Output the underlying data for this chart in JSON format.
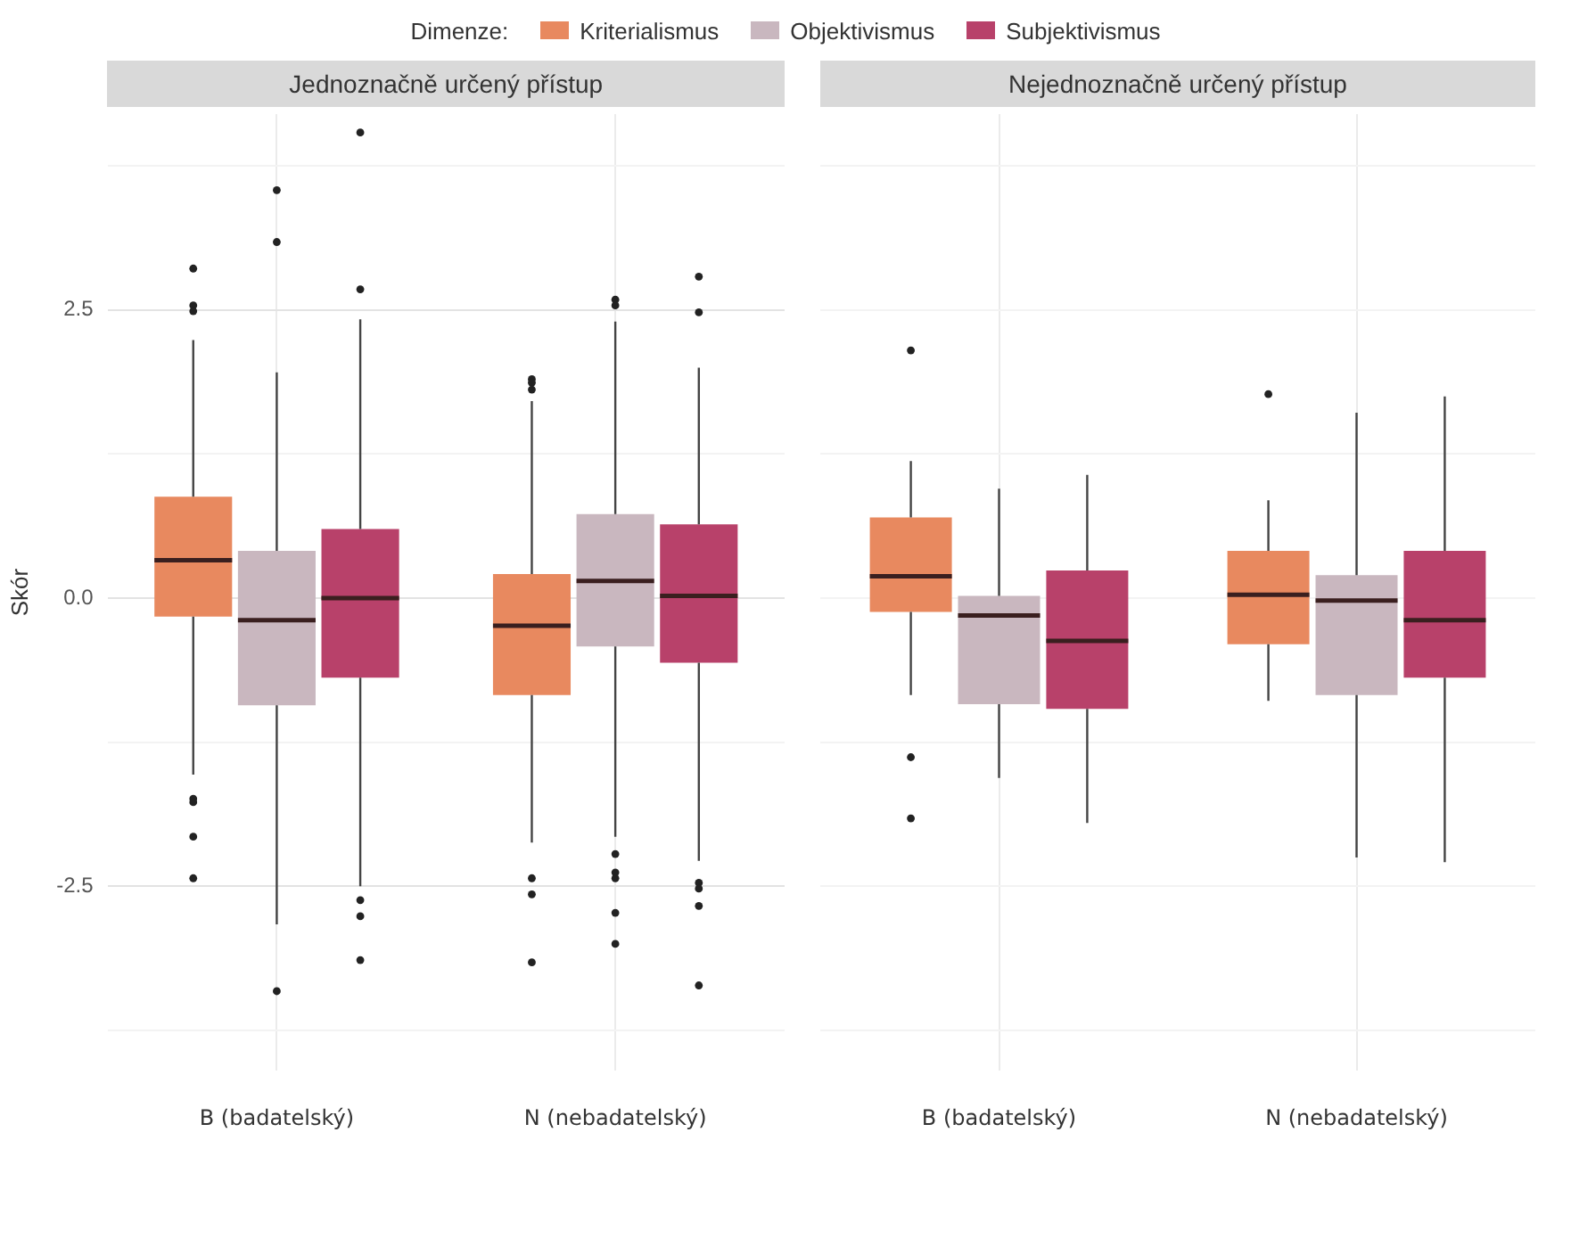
{
  "chart_data": [
    {
      "type": "box",
      "title": "Jednoznačně určený přístup",
      "ylabel": "Skór",
      "legend_title": "Dimenze:",
      "legend": "top",
      "grid": true,
      "categories": [
        "B (badatelský)",
        "N (nebadatelský)"
      ],
      "ylim": [
        -4.1,
        4.2
      ],
      "yticks": [
        {
          "value": -3.75,
          "label": null
        },
        {
          "value": -2.5,
          "label": "-2.5"
        },
        {
          "value": -1.25,
          "label": null
        },
        {
          "value": 0,
          "label": "0.0"
        },
        {
          "value": 1.25,
          "label": null
        },
        {
          "value": 2.5,
          "label": "2.5"
        },
        {
          "value": 3.75,
          "label": null
        }
      ],
      "series": [
        {
          "name": "Kriterialismus",
          "color": "#e8895f",
          "boxes": [
            {
              "low": -1.53,
              "q1": -0.16,
              "median": 0.33,
              "q3": 0.88,
              "high": 2.24,
              "outliers": [
                2.86,
                2.54,
                2.49,
                -1.74,
                -1.77,
                -2.07,
                -2.43
              ]
            },
            {
              "low": -2.12,
              "q1": -0.84,
              "median": -0.24,
              "q3": 0.21,
              "high": 1.71,
              "outliers": [
                1.9,
                1.87,
                1.81,
                -2.43,
                -2.57,
                -3.16
              ]
            }
          ]
        },
        {
          "name": "Objektivismus",
          "color": "#c9b7bf",
          "boxes": [
            {
              "low": -2.83,
              "q1": -0.93,
              "median": -0.19,
              "q3": 0.41,
              "high": 1.96,
              "outliers": [
                3.54,
                3.09,
                -3.41
              ]
            },
            {
              "low": -2.07,
              "q1": -0.42,
              "median": 0.15,
              "q3": 0.73,
              "high": 2.4,
              "outliers": [
                2.59,
                2.54,
                -2.22,
                -2.38,
                -2.43,
                -2.73,
                -3.0
              ]
            }
          ]
        },
        {
          "name": "Subjektivismus",
          "color": "#b8416a",
          "boxes": [
            {
              "low": -2.5,
              "q1": -0.69,
              "median": 0.0,
              "q3": 0.6,
              "high": 2.42,
              "outliers": [
                4.04,
                2.68,
                -2.62,
                -2.76,
                -3.14
              ]
            },
            {
              "low": -2.28,
              "q1": -0.56,
              "median": 0.02,
              "q3": 0.64,
              "high": 2.0,
              "outliers": [
                2.79,
                2.48,
                -2.47,
                -2.52,
                -2.67,
                -3.36
              ]
            }
          ]
        }
      ]
    },
    {
      "type": "box",
      "title": "Nejednoznačně určený přístup",
      "tick_labels": "x",
      "grid": true,
      "categories": [
        "B (badatelský)",
        "N (nebadatelský)"
      ],
      "ylim": [
        -4.1,
        4.2
      ],
      "yticks": [
        {
          "value": -3.75,
          "label": null
        },
        {
          "value": -2.5,
          "label": null
        },
        {
          "value": -1.25,
          "label": null
        },
        {
          "value": 0,
          "label": null
        },
        {
          "value": 1.25,
          "label": null
        },
        {
          "value": 2.5,
          "label": null
        },
        {
          "value": 3.75,
          "label": null
        }
      ],
      "series": [
        {
          "color": "#e8895f",
          "boxes": [
            {
              "low": -0.84,
              "q1": -0.12,
              "median": 0.19,
              "q3": 0.7,
              "high": 1.19,
              "outliers": [
                2.15,
                -1.38,
                -1.91
              ]
            },
            {
              "low": -0.89,
              "q1": -0.4,
              "median": 0.03,
              "q3": 0.41,
              "high": 0.85,
              "outliers": [
                1.77
              ]
            }
          ]
        },
        {
          "color": "#c9b7bf",
          "boxes": [
            {
              "low": -1.56,
              "q1": -0.92,
              "median": -0.15,
              "q3": 0.02,
              "high": 0.95
            },
            {
              "low": -2.25,
              "q1": -0.84,
              "median": -0.02,
              "q3": 0.2,
              "high": 1.61
            }
          ]
        },
        {
          "color": "#b8416a",
          "boxes": [
            {
              "low": -1.95,
              "q1": -0.96,
              "median": -0.37,
              "q3": 0.24,
              "high": 1.07
            },
            {
              "low": -2.29,
              "q1": -0.69,
              "median": -0.19,
              "q3": 0.41,
              "high": 1.75
            }
          ]
        }
      ]
    }
  ]
}
